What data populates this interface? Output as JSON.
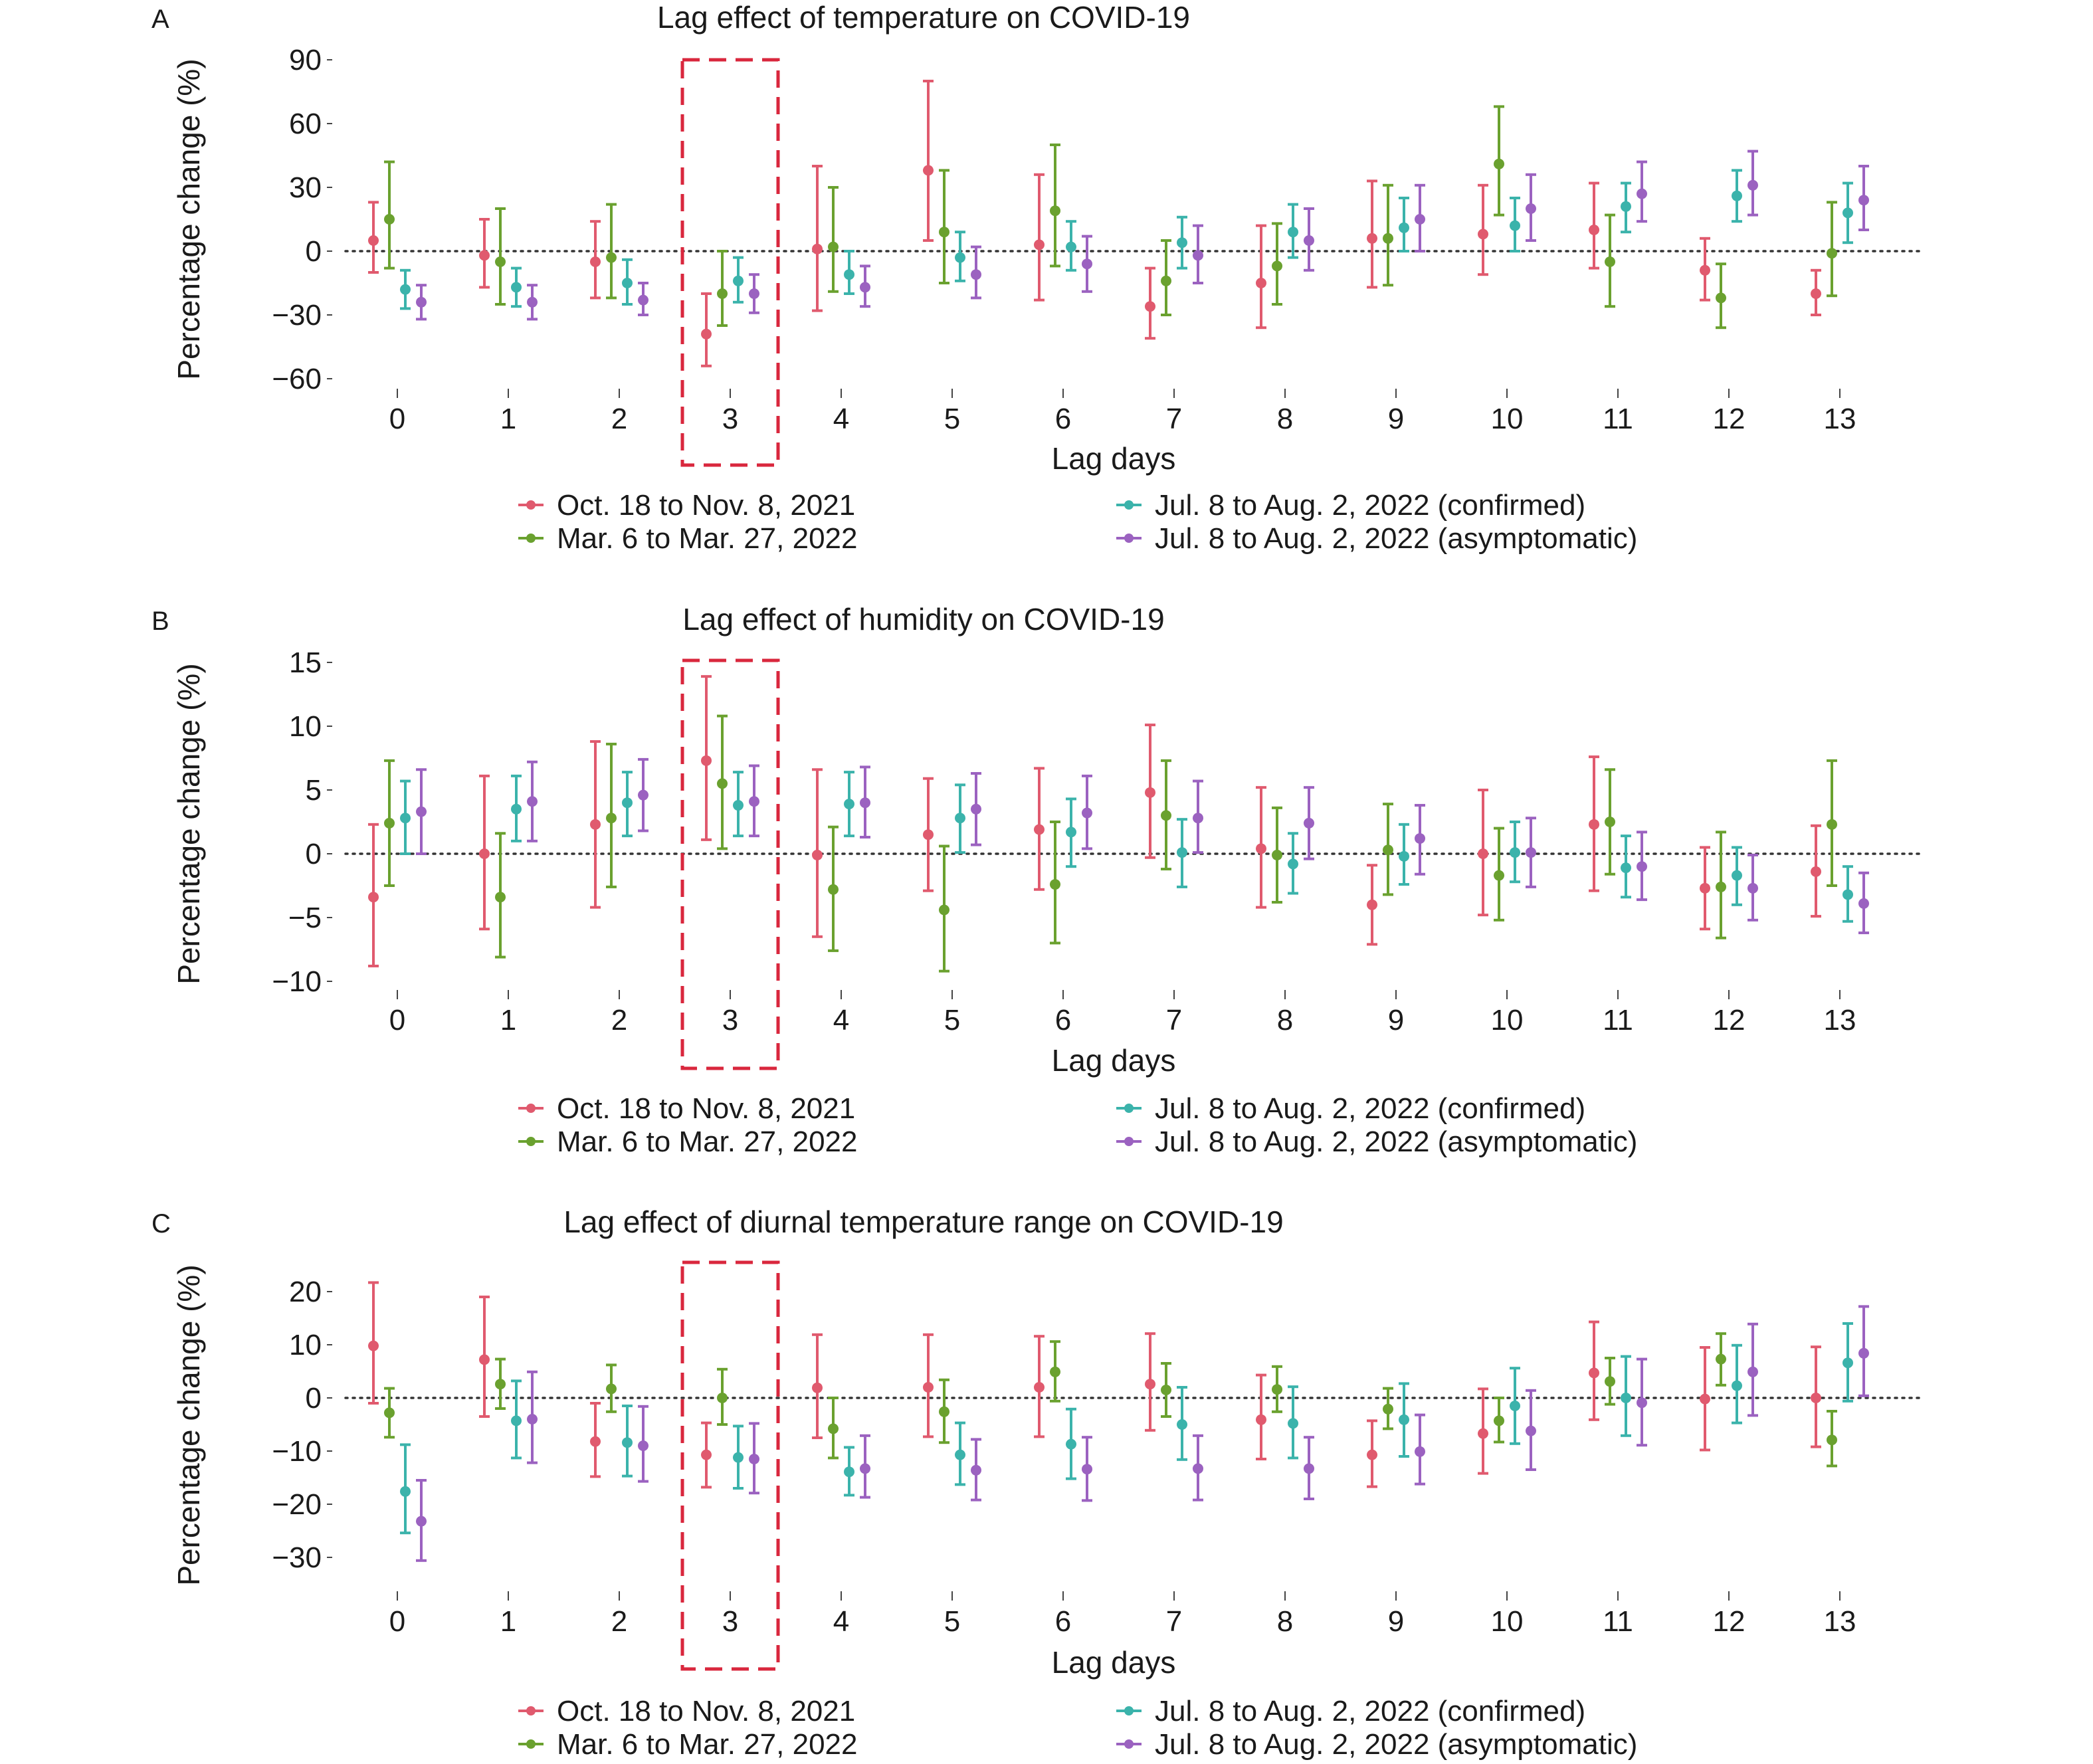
{
  "figure": {
    "series_colors": {
      "oct2021": "#e05a6e",
      "mar2022": "#6aa12f",
      "jul2022_confirmed": "#3bb3ab",
      "jul2022_asymptomatic": "#9b62c0"
    },
    "highlight_color": "#d9273d",
    "highlight_lag": 3,
    "legend": {
      "items": [
        {
          "key": "oct2021",
          "label": "Oct. 18 to Nov. 8, 2021"
        },
        {
          "key": "mar2022",
          "label": "Mar. 6 to Mar. 27, 2022"
        },
        {
          "key": "jul2022_confirmed",
          "label": "Jul. 8 to Aug. 2, 2022 (confirmed)"
        },
        {
          "key": "jul2022_asymptomatic",
          "label": "Jul. 8 to Aug. 2, 2022 (asymptomatic)"
        }
      ]
    }
  },
  "chart_data": [
    {
      "type": "scatter",
      "panel": "A",
      "title": "Lag effect of temperature on COVID-19",
      "xlabel": "Lag days",
      "ylabel": "Percentage change (%)",
      "categories": [
        "0",
        "1",
        "2",
        "3",
        "4",
        "5",
        "6",
        "7",
        "8",
        "9",
        "10",
        "11",
        "12",
        "13"
      ],
      "yticks": [
        90,
        60,
        30,
        0,
        -30,
        -60
      ],
      "ylim": [
        -70,
        90
      ],
      "reference_line": 0,
      "grid": false,
      "series": [
        {
          "name": "Oct. 18 to Nov. 8, 2021",
          "values": [
            5,
            -2,
            -5,
            -39,
            1,
            38,
            3,
            -26,
            -15,
            6,
            8,
            10,
            -9,
            -20
          ],
          "lower": [
            -10,
            -17,
            -22,
            -54,
            -28,
            5,
            -23,
            -41,
            -36,
            -17,
            -11,
            -8,
            -23,
            -30
          ],
          "upper": [
            23,
            15,
            14,
            -20,
            40,
            80,
            36,
            -8,
            12,
            33,
            31,
            32,
            6,
            -9
          ]
        },
        {
          "name": "Mar. 6 to Mar. 27, 2022",
          "values": [
            15,
            -5,
            -3,
            -20,
            2,
            9,
            19,
            -14,
            -7,
            6,
            41,
            -5,
            -22,
            -1
          ],
          "lower": [
            -8,
            -25,
            -22,
            -35,
            -19,
            -15,
            -7,
            -30,
            -25,
            -16,
            17,
            -26,
            -36,
            -21
          ],
          "upper": [
            42,
            20,
            22,
            0,
            30,
            38,
            50,
            5,
            13,
            31,
            68,
            17,
            -6,
            23
          ]
        },
        {
          "name": "Jul. 8 to Aug. 2, 2022 (confirmed)",
          "values": [
            -18,
            -17,
            -15,
            -14,
            -11,
            -3,
            2,
            4,
            9,
            11,
            12,
            21,
            26,
            18
          ],
          "lower": [
            -27,
            -26,
            -25,
            -24,
            -20,
            -14,
            -9,
            -8,
            -3,
            0,
            0,
            9,
            14,
            4
          ],
          "upper": [
            -9,
            -8,
            -4,
            -3,
            0,
            9,
            14,
            16,
            22,
            25,
            25,
            32,
            38,
            32
          ]
        },
        {
          "name": "Jul. 8 to Aug. 2, 2022 (asymptomatic)",
          "values": [
            -24,
            -24,
            -23,
            -20,
            -17,
            -11,
            -6,
            -2,
            5,
            15,
            20,
            27,
            31,
            24
          ],
          "lower": [
            -32,
            -32,
            -30,
            -29,
            -26,
            -22,
            -19,
            -15,
            -9,
            0,
            5,
            14,
            17,
            10
          ],
          "upper": [
            -16,
            -16,
            -15,
            -11,
            -7,
            2,
            7,
            12,
            20,
            31,
            36,
            42,
            47,
            40
          ]
        }
      ]
    },
    {
      "type": "scatter",
      "panel": "B",
      "title": "Lag effect of humidity on COVID-19",
      "xlabel": "Lag days",
      "ylabel": "Percentage change (%)",
      "categories": [
        "0",
        "1",
        "2",
        "3",
        "4",
        "5",
        "6",
        "7",
        "8",
        "9",
        "10",
        "11",
        "12",
        "13"
      ],
      "yticks": [
        15,
        10,
        5,
        0,
        -5,
        -10
      ],
      "ylim": [
        -12,
        15.5
      ],
      "reference_line": 0,
      "grid": false,
      "series": [
        {
          "name": "Oct. 18 to Nov. 8, 2021",
          "values": [
            -3.4,
            0,
            2.3,
            7.3,
            -0.1,
            1.5,
            1.9,
            4.8,
            0.4,
            -4.0,
            0,
            2.3,
            -2.7,
            -1.4
          ],
          "lower": [
            -8.8,
            -5.9,
            -4.2,
            1.1,
            -6.5,
            -2.9,
            -2.8,
            -0.3,
            -4.2,
            -7.1,
            -4.8,
            -2.9,
            -5.9,
            -4.9
          ],
          "upper": [
            2.3,
            6.1,
            8.8,
            13.9,
            6.6,
            5.9,
            6.7,
            10.1,
            5.2,
            -0.9,
            5.0,
            7.6,
            0.5,
            2.2
          ]
        },
        {
          "name": "Mar. 6 to Mar. 27, 2022",
          "values": [
            2.4,
            -3.4,
            2.8,
            5.5,
            -2.8,
            -4.4,
            -2.4,
            3.0,
            -0.1,
            0.3,
            -1.7,
            2.5,
            -2.6,
            2.3
          ],
          "lower": [
            -2.5,
            -8.1,
            -2.6,
            0.4,
            -7.6,
            -9.2,
            -7.0,
            -1.2,
            -3.8,
            -3.2,
            -5.2,
            -1.6,
            -6.6,
            -2.5
          ],
          "upper": [
            7.3,
            1.6,
            8.6,
            10.8,
            2.1,
            0.6,
            2.5,
            7.3,
            3.6,
            3.9,
            2.0,
            6.6,
            1.7,
            7.3
          ]
        },
        {
          "name": "Jul. 8 to Aug. 2, 2022 (confirmed)",
          "values": [
            2.8,
            3.5,
            4.0,
            3.8,
            3.9,
            2.8,
            1.7,
            0.1,
            -0.8,
            -0.2,
            0.1,
            -1.1,
            -1.7,
            -3.2
          ],
          "lower": [
            0,
            1.0,
            1.4,
            1.4,
            1.4,
            0.1,
            -1.0,
            -2.6,
            -3.1,
            -2.4,
            -2.2,
            -3.4,
            -4.0,
            -5.3
          ],
          "upper": [
            5.7,
            6.1,
            6.4,
            6.4,
            6.4,
            5.4,
            4.3,
            2.7,
            1.6,
            2.3,
            2.5,
            1.4,
            0.5,
            -1.0
          ]
        },
        {
          "name": "Jul. 8 to Aug. 2, 2022 (asymptomatic)",
          "values": [
            3.3,
            4.1,
            4.6,
            4.1,
            4.0,
            3.5,
            3.2,
            2.8,
            2.4,
            1.2,
            0.1,
            -1.0,
            -2.7,
            -3.9
          ],
          "lower": [
            0,
            1.0,
            1.8,
            1.4,
            1.3,
            0.7,
            0.4,
            0.1,
            -0.4,
            -1.6,
            -2.6,
            -3.6,
            -5.2,
            -6.2
          ],
          "upper": [
            6.6,
            7.2,
            7.4,
            6.9,
            6.8,
            6.3,
            6.1,
            5.7,
            5.2,
            3.8,
            2.8,
            1.7,
            -0.1,
            -1.5
          ]
        }
      ]
    },
    {
      "type": "scatter",
      "panel": "C",
      "title": "Lag effect of diurnal temperature range on COVID-19",
      "xlabel": "Lag days",
      "ylabel": "Percentage change (%)",
      "categories": [
        "0",
        "1",
        "2",
        "3",
        "4",
        "5",
        "6",
        "7",
        "8",
        "9",
        "10",
        "11",
        "12",
        "13"
      ],
      "yticks": [
        20,
        10,
        0,
        -10,
        -20,
        -30
      ],
      "ylim": [
        -36,
        25
      ],
      "reference_line": 0,
      "grid": false,
      "series": [
        {
          "name": "Oct. 18 to Nov. 8, 2021",
          "values": [
            9.8,
            7.2,
            -8.2,
            -10.7,
            1.9,
            2.0,
            2.0,
            2.6,
            -4.1,
            -10.7,
            -6.7,
            4.7,
            -0.2,
            0
          ],
          "lower": [
            -1.0,
            -3.5,
            -14.8,
            -16.8,
            -7.5,
            -7.3,
            -7.3,
            -6.1,
            -11.5,
            -16.7,
            -14.2,
            -4.1,
            -9.8,
            -9.2
          ],
          "upper": [
            21.7,
            19.0,
            -1.0,
            -4.7,
            11.9,
            11.9,
            11.6,
            12.1,
            4.3,
            -4.3,
            1.7,
            14.3,
            9.5,
            9.6
          ]
        },
        {
          "name": "Mar. 6 to Mar. 27, 2022",
          "values": [
            -2.8,
            2.6,
            1.7,
            0,
            -5.8,
            -2.6,
            4.9,
            1.5,
            1.6,
            -2.1,
            -4.3,
            3.1,
            7.3,
            -7.9
          ],
          "lower": [
            -7.4,
            -2.0,
            -2.6,
            -5.0,
            -11.3,
            -8.4,
            -0.6,
            -3.5,
            -2.6,
            -5.8,
            -8.3,
            -1.2,
            2.4,
            -12.8
          ],
          "upper": [
            1.8,
            7.3,
            6.2,
            5.4,
            0,
            3.4,
            10.6,
            6.5,
            5.9,
            1.8,
            0,
            7.5,
            12.1,
            -2.5
          ]
        },
        {
          "name": "Jul. 8 to Aug. 2, 2022 (confirmed)",
          "values": [
            -17.6,
            -4.3,
            -8.4,
            -11.2,
            -13.9,
            -10.7,
            -8.7,
            -5.0,
            -4.8,
            -4.1,
            -1.5,
            0,
            2.3,
            6.6
          ],
          "lower": [
            -25.4,
            -11.3,
            -14.7,
            -17.0,
            -18.3,
            -16.3,
            -15.2,
            -11.6,
            -11.3,
            -11.0,
            -8.6,
            -7.1,
            -4.7,
            -0.6
          ],
          "upper": [
            -8.8,
            3.2,
            -1.5,
            -5.3,
            -9.3,
            -4.7,
            -2.1,
            2.0,
            2.1,
            2.7,
            5.6,
            7.8,
            9.9,
            14.0
          ]
        },
        {
          "name": "Jul. 8 to Aug. 2, 2022 (asymptomatic)",
          "values": [
            -23.2,
            -4.0,
            -9.0,
            -11.5,
            -13.3,
            -13.6,
            -13.4,
            -13.3,
            -13.3,
            -10.1,
            -6.2,
            -0.9,
            4.9,
            8.4
          ],
          "lower": [
            -30.6,
            -12.2,
            -15.7,
            -17.9,
            -18.7,
            -19.2,
            -19.3,
            -19.2,
            -19.0,
            -16.2,
            -13.5,
            -8.9,
            -3.3,
            0.4
          ],
          "upper": [
            -15.5,
            4.9,
            -1.6,
            -4.8,
            -7.1,
            -7.8,
            -7.4,
            -7.1,
            -7.4,
            -3.2,
            1.4,
            7.3,
            13.9,
            17.2
          ]
        }
      ]
    }
  ]
}
